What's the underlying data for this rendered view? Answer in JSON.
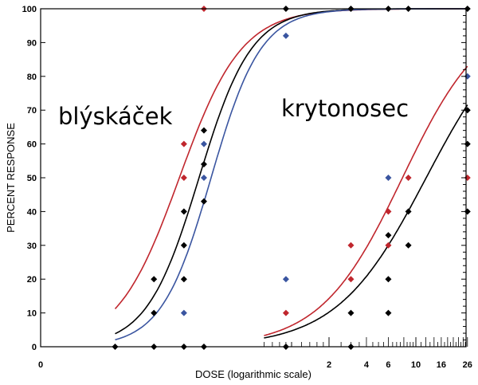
{
  "chart_data": {
    "type": "scatter",
    "xlabel": "DOSE  (logarithmic scale)",
    "ylabel": "PERCENT RESPONSE",
    "x_scale": "log",
    "x_ticks": [
      0,
      2,
      4,
      6,
      10,
      16,
      26
    ],
    "y_ticks": [
      0,
      10,
      20,
      30,
      40,
      50,
      60,
      70,
      80,
      90,
      100
    ],
    "ylim": [
      0,
      100
    ],
    "grid": false,
    "annotations": [
      "blýskáček",
      "krytonosec"
    ],
    "colors": {
      "black": "#000000",
      "red": "#c0262d",
      "blue": "#3a55a0"
    },
    "curves": [
      {
        "group": "blýskáček",
        "color": "red",
        "ed50": 0.125,
        "slope_decades": 0.25,
        "x_from": 0.038
      },
      {
        "group": "blýskáček",
        "color": "black",
        "ed50": 0.18,
        "slope_decades": 0.21,
        "x_from": 0.038
      },
      {
        "group": "blýskáček",
        "color": "blue",
        "ed50": 0.225,
        "slope_decades": 0.2,
        "x_from": 0.038
      },
      {
        "group": "krytonosec",
        "color": "red",
        "ed50": 7.8,
        "slope_decades": 0.33,
        "x_from": 0.6
      },
      {
        "group": "krytonosec",
        "color": "black",
        "ed50": 12.1,
        "slope_decades": 0.36,
        "x_from": 0.6
      }
    ],
    "points": [
      {
        "x": 0.038,
        "y": 0,
        "c": "black"
      },
      {
        "x": 0.078,
        "y": 20,
        "c": "black"
      },
      {
        "x": 0.078,
        "y": 10,
        "c": "black"
      },
      {
        "x": 0.078,
        "y": 0,
        "c": "black"
      },
      {
        "x": 0.136,
        "y": 60,
        "c": "red"
      },
      {
        "x": 0.136,
        "y": 50,
        "c": "red"
      },
      {
        "x": 0.136,
        "y": 40,
        "c": "black"
      },
      {
        "x": 0.136,
        "y": 30,
        "c": "black"
      },
      {
        "x": 0.136,
        "y": 20,
        "c": "black"
      },
      {
        "x": 0.136,
        "y": 10,
        "c": "blue"
      },
      {
        "x": 0.136,
        "y": 0,
        "c": "black"
      },
      {
        "x": 0.197,
        "y": 100,
        "c": "red"
      },
      {
        "x": 0.197,
        "y": 64,
        "c": "black"
      },
      {
        "x": 0.197,
        "y": 60,
        "c": "blue"
      },
      {
        "x": 0.197,
        "y": 54,
        "c": "black"
      },
      {
        "x": 0.197,
        "y": 50,
        "c": "blue"
      },
      {
        "x": 0.197,
        "y": 43,
        "c": "black"
      },
      {
        "x": 0.197,
        "y": 0,
        "c": "black"
      },
      {
        "x": 0.9,
        "y": 100,
        "c": "black"
      },
      {
        "x": 0.9,
        "y": 92,
        "c": "blue"
      },
      {
        "x": 0.9,
        "y": 20,
        "c": "blue"
      },
      {
        "x": 0.9,
        "y": 10,
        "c": "red"
      },
      {
        "x": 0.9,
        "y": 0,
        "c": "black"
      },
      {
        "x": 3,
        "y": 100,
        "c": "black"
      },
      {
        "x": 3,
        "y": 30,
        "c": "red"
      },
      {
        "x": 3,
        "y": 20,
        "c": "red"
      },
      {
        "x": 3,
        "y": 10,
        "c": "black"
      },
      {
        "x": 3,
        "y": 0,
        "c": "black"
      },
      {
        "x": 6,
        "y": 100,
        "c": "black"
      },
      {
        "x": 6,
        "y": 50,
        "c": "blue"
      },
      {
        "x": 6,
        "y": 40,
        "c": "red"
      },
      {
        "x": 6,
        "y": 33,
        "c": "black"
      },
      {
        "x": 6,
        "y": 30,
        "c": "red"
      },
      {
        "x": 6,
        "y": 20,
        "c": "black"
      },
      {
        "x": 6,
        "y": 10,
        "c": "black"
      },
      {
        "x": 8.7,
        "y": 100,
        "c": "black"
      },
      {
        "x": 8.7,
        "y": 50,
        "c": "red"
      },
      {
        "x": 8.7,
        "y": 40,
        "c": "black"
      },
      {
        "x": 8.7,
        "y": 30,
        "c": "black"
      },
      {
        "x": 26,
        "y": 100,
        "c": "black"
      },
      {
        "x": 26,
        "y": 80,
        "c": "blue"
      },
      {
        "x": 26,
        "y": 70,
        "c": "black"
      },
      {
        "x": 26,
        "y": 60,
        "c": "black"
      },
      {
        "x": 26,
        "y": 50,
        "c": "red"
      },
      {
        "x": 26,
        "y": 40,
        "c": "black"
      }
    ]
  }
}
